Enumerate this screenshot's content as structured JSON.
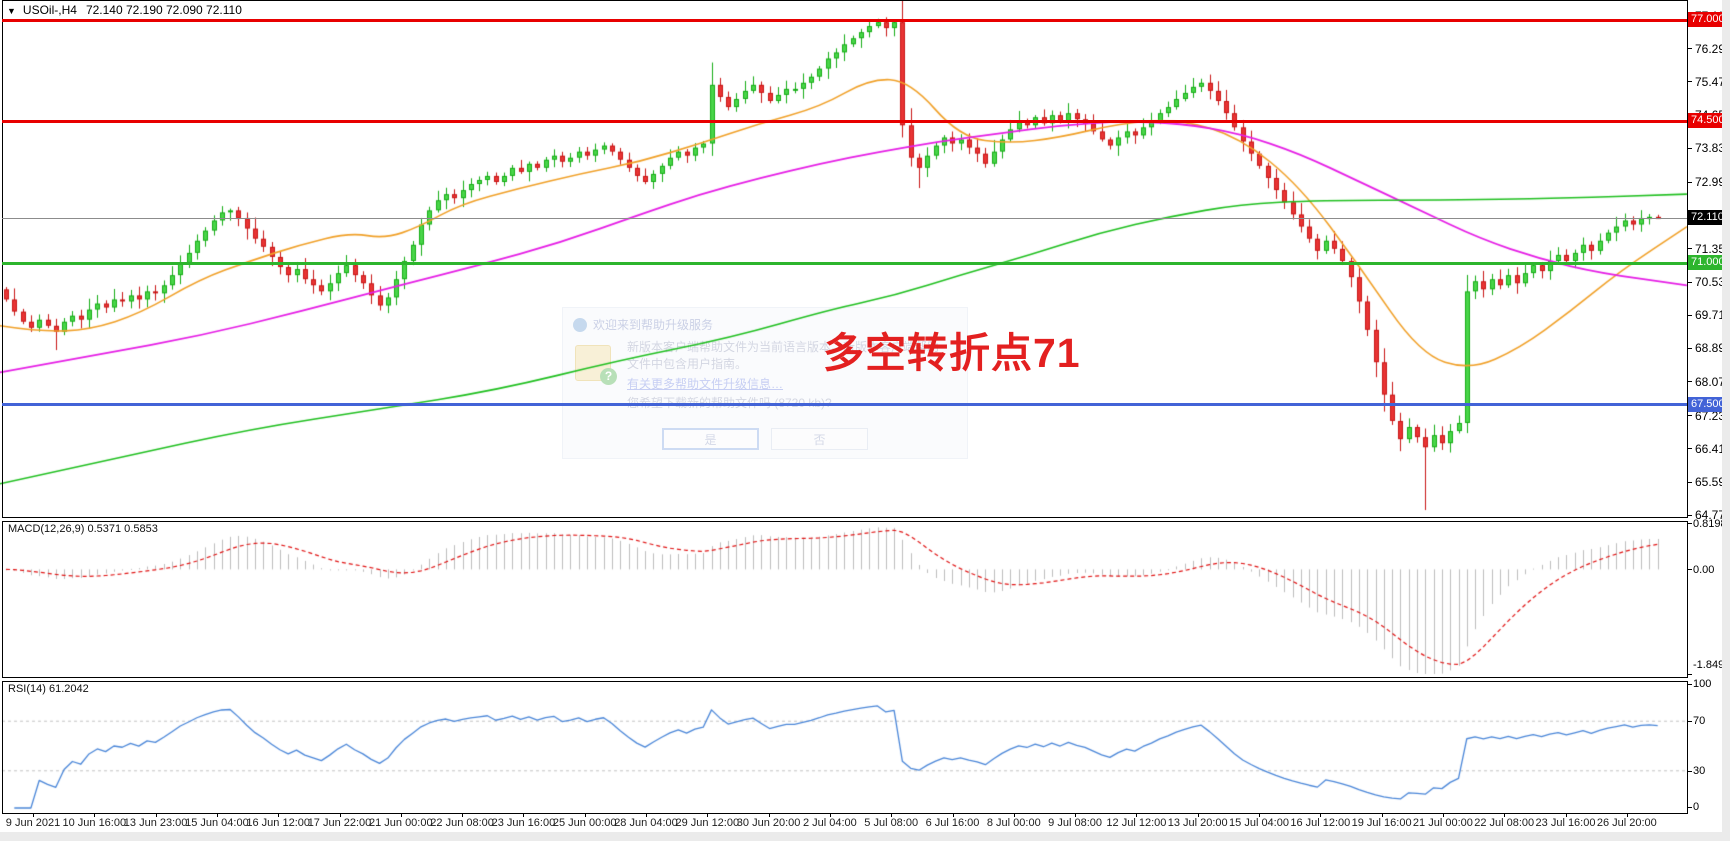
{
  "window": {
    "bg": "#ffffff",
    "margin_color": "#ebebeb"
  },
  "header": {
    "dropdown_icon": "▼",
    "symbol": "USOil-,H4",
    "ohlc": "72.140 72.190 72.090 72.110"
  },
  "annotation": {
    "text": "多空转折点71",
    "color": "#e32020"
  },
  "chart_data": {
    "type": "candlestick",
    "symbol": "USOil-",
    "period": "H4",
    "last_ohlc": {
      "open": 72.14,
      "high": 72.19,
      "low": 72.09,
      "close": 72.11
    },
    "price_axis_ticks": [
      "77.110",
      "76.290",
      "75.470",
      "74.650",
      "73.830",
      "72.990",
      "71.350",
      "70.530",
      "69.710",
      "68.890",
      "68.070",
      "67.230",
      "66.410",
      "65.590",
      "64.770"
    ],
    "hlines": [
      {
        "price": 77.0,
        "label": "77.000",
        "color": "#e80000",
        "thickness": 3
      },
      {
        "price": 74.5,
        "label": "74.500",
        "color": "#e80000",
        "thickness": 3
      },
      {
        "price": 71.0,
        "label": "71.000",
        "color": "#2db52d",
        "thickness": 3
      },
      {
        "price": 67.5,
        "label": "67.500",
        "color": "#4263d7",
        "thickness": 3
      }
    ],
    "current_price": {
      "value": 72.11,
      "label": "72.110",
      "line_color": "#8c8c8c",
      "tag_bg": "#000000",
      "tag_fg": "#ffffff"
    },
    "candles": {
      "bull_border": "#14ad14",
      "bull_fill": "#49d549",
      "bear_border": "#c81414",
      "bear_fill": "#e83434",
      "first_open": 70.35,
      "closes": [
        70.1,
        69.8,
        69.55,
        69.4,
        69.6,
        69.45,
        69.3,
        69.55,
        69.7,
        69.6,
        69.85,
        70.0,
        69.9,
        70.1,
        70.05,
        70.2,
        70.1,
        70.3,
        70.25,
        70.45,
        70.7,
        71.0,
        71.25,
        71.55,
        71.8,
        72.05,
        72.25,
        72.3,
        72.1,
        71.85,
        71.6,
        71.4,
        71.15,
        70.9,
        70.7,
        70.85,
        70.6,
        70.45,
        70.3,
        70.5,
        70.75,
        70.95,
        70.7,
        70.5,
        70.2,
        69.95,
        70.15,
        70.6,
        71.05,
        71.45,
        71.95,
        72.3,
        72.55,
        72.7,
        72.6,
        72.8,
        72.95,
        73.05,
        73.15,
        73.0,
        73.15,
        73.35,
        73.25,
        73.45,
        73.35,
        73.55,
        73.65,
        73.5,
        73.6,
        73.75,
        73.65,
        73.8,
        73.9,
        73.75,
        73.55,
        73.35,
        73.15,
        73.0,
        73.2,
        73.4,
        73.6,
        73.75,
        73.65,
        73.85,
        73.95,
        75.4,
        75.1,
        74.85,
        75.05,
        75.25,
        75.4,
        75.2,
        75.0,
        75.15,
        75.3,
        75.3,
        75.45,
        75.6,
        75.8,
        76.05,
        76.2,
        76.4,
        76.55,
        76.7,
        76.85,
        76.95,
        76.8,
        76.95,
        74.4,
        73.6,
        73.35,
        73.65,
        73.9,
        74.1,
        73.95,
        74.05,
        73.85,
        73.7,
        73.45,
        73.75,
        74.05,
        74.3,
        74.5,
        74.4,
        74.6,
        74.45,
        74.65,
        74.5,
        74.7,
        74.55,
        74.45,
        74.25,
        74.05,
        73.9,
        74.1,
        74.25,
        74.15,
        74.35,
        74.5,
        74.7,
        74.85,
        75.05,
        75.2,
        75.35,
        75.45,
        75.25,
        75.0,
        74.7,
        74.35,
        74.0,
        73.7,
        73.4,
        73.1,
        72.8,
        72.5,
        72.2,
        71.9,
        71.6,
        71.3,
        71.55,
        71.35,
        71.05,
        70.65,
        70.05,
        69.35,
        68.55,
        67.75,
        67.1,
        66.65,
        66.95,
        66.7,
        66.45,
        66.75,
        66.55,
        66.85,
        67.05,
        70.3,
        70.55,
        70.35,
        70.6,
        70.45,
        70.7,
        70.5,
        70.75,
        70.95,
        70.8,
        71.05,
        71.2,
        71.05,
        71.25,
        71.45,
        71.3,
        71.55,
        71.75,
        71.9,
        72.05,
        71.95,
        72.1,
        72.14,
        72.11
      ],
      "overrides": {
        "6": {
          "l": 68.85
        },
        "85": {
          "h": 75.95
        },
        "105": {
          "h": 77.03
        },
        "107": {
          "h": 77.0
        },
        "108": {
          "l": 74.1
        },
        "110": {
          "l": 72.85
        },
        "144": {
          "h": 75.55
        },
        "171": {
          "l": 64.9
        },
        "176": {
          "l": 66.8
        },
        "199": {
          "h": 72.19,
          "l": 72.09
        }
      }
    },
    "ma_lines": [
      {
        "name": "ma-fast-orange",
        "color": "#f0a028",
        "width": 1.6,
        "points": [
          [
            0,
            69.45
          ],
          [
            40,
            69.3
          ],
          [
            90,
            69.35
          ],
          [
            140,
            69.75
          ],
          [
            200,
            70.6
          ],
          [
            250,
            71.05
          ],
          [
            300,
            71.45
          ],
          [
            350,
            71.75
          ],
          [
            385,
            71.6
          ],
          [
            420,
            71.9
          ],
          [
            460,
            72.45
          ],
          [
            520,
            72.85
          ],
          [
            580,
            73.2
          ],
          [
            640,
            73.5
          ],
          [
            700,
            73.95
          ],
          [
            760,
            74.45
          ],
          [
            820,
            74.85
          ],
          [
            870,
            75.55
          ],
          [
            910,
            75.5
          ],
          [
            960,
            74.1
          ],
          [
            1010,
            73.95
          ],
          [
            1060,
            74.1
          ],
          [
            1120,
            74.45
          ],
          [
            1180,
            74.55
          ],
          [
            1240,
            74.1
          ],
          [
            1300,
            72.9
          ],
          [
            1360,
            70.9
          ],
          [
            1420,
            68.75
          ],
          [
            1470,
            68.35
          ],
          [
            1520,
            68.9
          ],
          [
            1570,
            69.8
          ],
          [
            1620,
            70.8
          ],
          [
            1687,
            71.9
          ]
        ]
      },
      {
        "name": "ma-mid-magenta",
        "color": "#e51ee5",
        "width": 1.8,
        "points": [
          [
            0,
            68.3
          ],
          [
            100,
            68.75
          ],
          [
            200,
            69.2
          ],
          [
            300,
            69.8
          ],
          [
            400,
            70.45
          ],
          [
            480,
            70.95
          ],
          [
            560,
            71.5
          ],
          [
            640,
            72.2
          ],
          [
            700,
            72.7
          ],
          [
            760,
            73.1
          ],
          [
            820,
            73.45
          ],
          [
            880,
            73.75
          ],
          [
            940,
            74.0
          ],
          [
            1000,
            74.2
          ],
          [
            1060,
            74.4
          ],
          [
            1120,
            74.5
          ],
          [
            1180,
            74.45
          ],
          [
            1240,
            74.2
          ],
          [
            1300,
            73.7
          ],
          [
            1360,
            73.0
          ],
          [
            1420,
            72.3
          ],
          [
            1480,
            71.6
          ],
          [
            1540,
            71.1
          ],
          [
            1600,
            70.75
          ],
          [
            1687,
            70.45
          ]
        ]
      },
      {
        "name": "ma-slow-green",
        "color": "#1fbf1f",
        "width": 1.6,
        "points": [
          [
            0,
            65.55
          ],
          [
            120,
            66.2
          ],
          [
            250,
            66.9
          ],
          [
            380,
            67.4
          ],
          [
            495,
            67.85
          ],
          [
            620,
            68.6
          ],
          [
            730,
            69.15
          ],
          [
            830,
            69.85
          ],
          [
            895,
            70.2
          ],
          [
            960,
            70.7
          ],
          [
            1030,
            71.2
          ],
          [
            1100,
            71.75
          ],
          [
            1170,
            72.15
          ],
          [
            1240,
            72.45
          ],
          [
            1320,
            72.55
          ],
          [
            1440,
            72.55
          ],
          [
            1560,
            72.6
          ],
          [
            1687,
            72.7
          ]
        ]
      }
    ]
  },
  "macd": {
    "label": "MACD(12,26,9) 0.5371 0.5853",
    "fast": 12,
    "slow": 26,
    "signal": 9,
    "main_value": "0.5371",
    "signal_value": "0.5853",
    "scale": {
      "max": "0.8198",
      "zero": "0.00",
      "min": "-1.8495"
    },
    "histogram_color": "#bcbcbc",
    "signal_color": "#e01414"
  },
  "rsi": {
    "label": "RSI(14) 61.2042",
    "period": 14,
    "value": "61.2042",
    "scale": [
      "100",
      "70",
      "30",
      "0"
    ],
    "levels": [
      70,
      30
    ],
    "line_color": "#4a86d8",
    "level_color": "#c2c2c2"
  },
  "time_axis": {
    "labels": [
      "9 Jun 2021",
      "10 Jun 16:00",
      "13 Jun 23:00",
      "15 Jun 04:00",
      "16 Jun 12:00",
      "17 Jun 22:00",
      "21 Jun 00:00",
      "22 Jun 08:00",
      "23 Jun 16:00",
      "25 Jun 00:00",
      "28 Jun 04:00",
      "29 Jun 12:00",
      "30 Jun 20:00",
      "2 Jul 04:00",
      "5 Jul 08:00",
      "6 Jul 16:00",
      "8 Jul 00:00",
      "9 Jul 08:00",
      "12 Jul 12:00",
      "13 Jul 20:00",
      "15 Jul 04:00",
      "16 Jul 12:00",
      "19 Jul 16:00",
      "21 Jul 00:00",
      "22 Jul 08:00",
      "23 Jul 16:00",
      "26 Jul 20:00"
    ]
  },
  "dialog": {
    "title": "欢迎来到帮助升级服务",
    "body": "新版本客户端帮助文件为当前语言版本。新版本客户端帮助文件中包含用户指南。",
    "link": "有关更多帮助文件升级信息…",
    "question": "您希望下载新的帮助文件吗 (8720 kb)?",
    "yes": "是",
    "no": "否"
  }
}
